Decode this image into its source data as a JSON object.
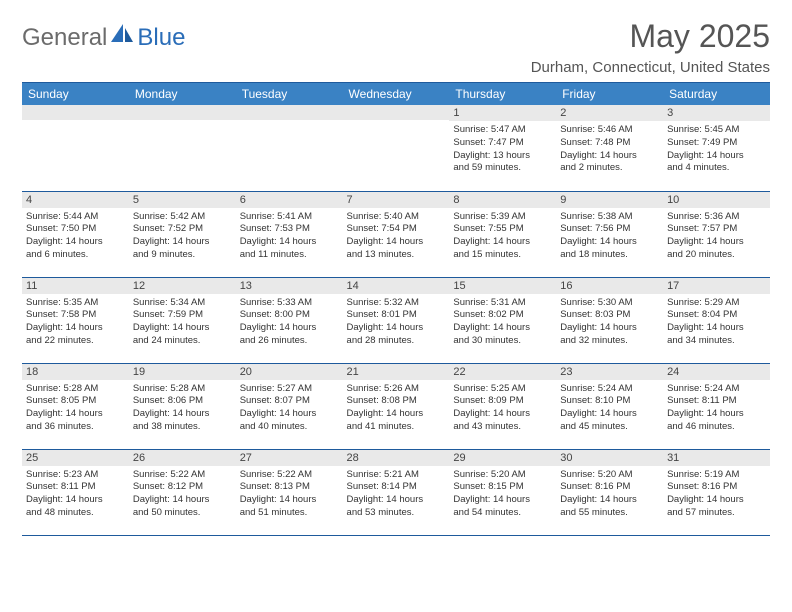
{
  "logo": {
    "part1": "General",
    "part2": "Blue"
  },
  "title": "May 2025",
  "location": "Durham, Connecticut, United States",
  "colors": {
    "header_bg": "#3a82c4",
    "header_text": "#ffffff",
    "border": "#1e5a9c",
    "daynum_bg": "#e9e9e9",
    "logo_gray": "#6b6b6b",
    "logo_blue": "#2a6db8",
    "text": "#333333"
  },
  "weekdays": [
    "Sunday",
    "Monday",
    "Tuesday",
    "Wednesday",
    "Thursday",
    "Friday",
    "Saturday"
  ],
  "weeks": [
    [
      {
        "n": "",
        "lines": [
          "",
          "",
          "",
          ""
        ]
      },
      {
        "n": "",
        "lines": [
          "",
          "",
          "",
          ""
        ]
      },
      {
        "n": "",
        "lines": [
          "",
          "",
          "",
          ""
        ]
      },
      {
        "n": "",
        "lines": [
          "",
          "",
          "",
          ""
        ]
      },
      {
        "n": "1",
        "lines": [
          "Sunrise: 5:47 AM",
          "Sunset: 7:47 PM",
          "Daylight: 13 hours",
          "and 59 minutes."
        ]
      },
      {
        "n": "2",
        "lines": [
          "Sunrise: 5:46 AM",
          "Sunset: 7:48 PM",
          "Daylight: 14 hours",
          "and 2 minutes."
        ]
      },
      {
        "n": "3",
        "lines": [
          "Sunrise: 5:45 AM",
          "Sunset: 7:49 PM",
          "Daylight: 14 hours",
          "and 4 minutes."
        ]
      }
    ],
    [
      {
        "n": "4",
        "lines": [
          "Sunrise: 5:44 AM",
          "Sunset: 7:50 PM",
          "Daylight: 14 hours",
          "and 6 minutes."
        ]
      },
      {
        "n": "5",
        "lines": [
          "Sunrise: 5:42 AM",
          "Sunset: 7:52 PM",
          "Daylight: 14 hours",
          "and 9 minutes."
        ]
      },
      {
        "n": "6",
        "lines": [
          "Sunrise: 5:41 AM",
          "Sunset: 7:53 PM",
          "Daylight: 14 hours",
          "and 11 minutes."
        ]
      },
      {
        "n": "7",
        "lines": [
          "Sunrise: 5:40 AM",
          "Sunset: 7:54 PM",
          "Daylight: 14 hours",
          "and 13 minutes."
        ]
      },
      {
        "n": "8",
        "lines": [
          "Sunrise: 5:39 AM",
          "Sunset: 7:55 PM",
          "Daylight: 14 hours",
          "and 15 minutes."
        ]
      },
      {
        "n": "9",
        "lines": [
          "Sunrise: 5:38 AM",
          "Sunset: 7:56 PM",
          "Daylight: 14 hours",
          "and 18 minutes."
        ]
      },
      {
        "n": "10",
        "lines": [
          "Sunrise: 5:36 AM",
          "Sunset: 7:57 PM",
          "Daylight: 14 hours",
          "and 20 minutes."
        ]
      }
    ],
    [
      {
        "n": "11",
        "lines": [
          "Sunrise: 5:35 AM",
          "Sunset: 7:58 PM",
          "Daylight: 14 hours",
          "and 22 minutes."
        ]
      },
      {
        "n": "12",
        "lines": [
          "Sunrise: 5:34 AM",
          "Sunset: 7:59 PM",
          "Daylight: 14 hours",
          "and 24 minutes."
        ]
      },
      {
        "n": "13",
        "lines": [
          "Sunrise: 5:33 AM",
          "Sunset: 8:00 PM",
          "Daylight: 14 hours",
          "and 26 minutes."
        ]
      },
      {
        "n": "14",
        "lines": [
          "Sunrise: 5:32 AM",
          "Sunset: 8:01 PM",
          "Daylight: 14 hours",
          "and 28 minutes."
        ]
      },
      {
        "n": "15",
        "lines": [
          "Sunrise: 5:31 AM",
          "Sunset: 8:02 PM",
          "Daylight: 14 hours",
          "and 30 minutes."
        ]
      },
      {
        "n": "16",
        "lines": [
          "Sunrise: 5:30 AM",
          "Sunset: 8:03 PM",
          "Daylight: 14 hours",
          "and 32 minutes."
        ]
      },
      {
        "n": "17",
        "lines": [
          "Sunrise: 5:29 AM",
          "Sunset: 8:04 PM",
          "Daylight: 14 hours",
          "and 34 minutes."
        ]
      }
    ],
    [
      {
        "n": "18",
        "lines": [
          "Sunrise: 5:28 AM",
          "Sunset: 8:05 PM",
          "Daylight: 14 hours",
          "and 36 minutes."
        ]
      },
      {
        "n": "19",
        "lines": [
          "Sunrise: 5:28 AM",
          "Sunset: 8:06 PM",
          "Daylight: 14 hours",
          "and 38 minutes."
        ]
      },
      {
        "n": "20",
        "lines": [
          "Sunrise: 5:27 AM",
          "Sunset: 8:07 PM",
          "Daylight: 14 hours",
          "and 40 minutes."
        ]
      },
      {
        "n": "21",
        "lines": [
          "Sunrise: 5:26 AM",
          "Sunset: 8:08 PM",
          "Daylight: 14 hours",
          "and 41 minutes."
        ]
      },
      {
        "n": "22",
        "lines": [
          "Sunrise: 5:25 AM",
          "Sunset: 8:09 PM",
          "Daylight: 14 hours",
          "and 43 minutes."
        ]
      },
      {
        "n": "23",
        "lines": [
          "Sunrise: 5:24 AM",
          "Sunset: 8:10 PM",
          "Daylight: 14 hours",
          "and 45 minutes."
        ]
      },
      {
        "n": "24",
        "lines": [
          "Sunrise: 5:24 AM",
          "Sunset: 8:11 PM",
          "Daylight: 14 hours",
          "and 46 minutes."
        ]
      }
    ],
    [
      {
        "n": "25",
        "lines": [
          "Sunrise: 5:23 AM",
          "Sunset: 8:11 PM",
          "Daylight: 14 hours",
          "and 48 minutes."
        ]
      },
      {
        "n": "26",
        "lines": [
          "Sunrise: 5:22 AM",
          "Sunset: 8:12 PM",
          "Daylight: 14 hours",
          "and 50 minutes."
        ]
      },
      {
        "n": "27",
        "lines": [
          "Sunrise: 5:22 AM",
          "Sunset: 8:13 PM",
          "Daylight: 14 hours",
          "and 51 minutes."
        ]
      },
      {
        "n": "28",
        "lines": [
          "Sunrise: 5:21 AM",
          "Sunset: 8:14 PM",
          "Daylight: 14 hours",
          "and 53 minutes."
        ]
      },
      {
        "n": "29",
        "lines": [
          "Sunrise: 5:20 AM",
          "Sunset: 8:15 PM",
          "Daylight: 14 hours",
          "and 54 minutes."
        ]
      },
      {
        "n": "30",
        "lines": [
          "Sunrise: 5:20 AM",
          "Sunset: 8:16 PM",
          "Daylight: 14 hours",
          "and 55 minutes."
        ]
      },
      {
        "n": "31",
        "lines": [
          "Sunrise: 5:19 AM",
          "Sunset: 8:16 PM",
          "Daylight: 14 hours",
          "and 57 minutes."
        ]
      }
    ]
  ]
}
